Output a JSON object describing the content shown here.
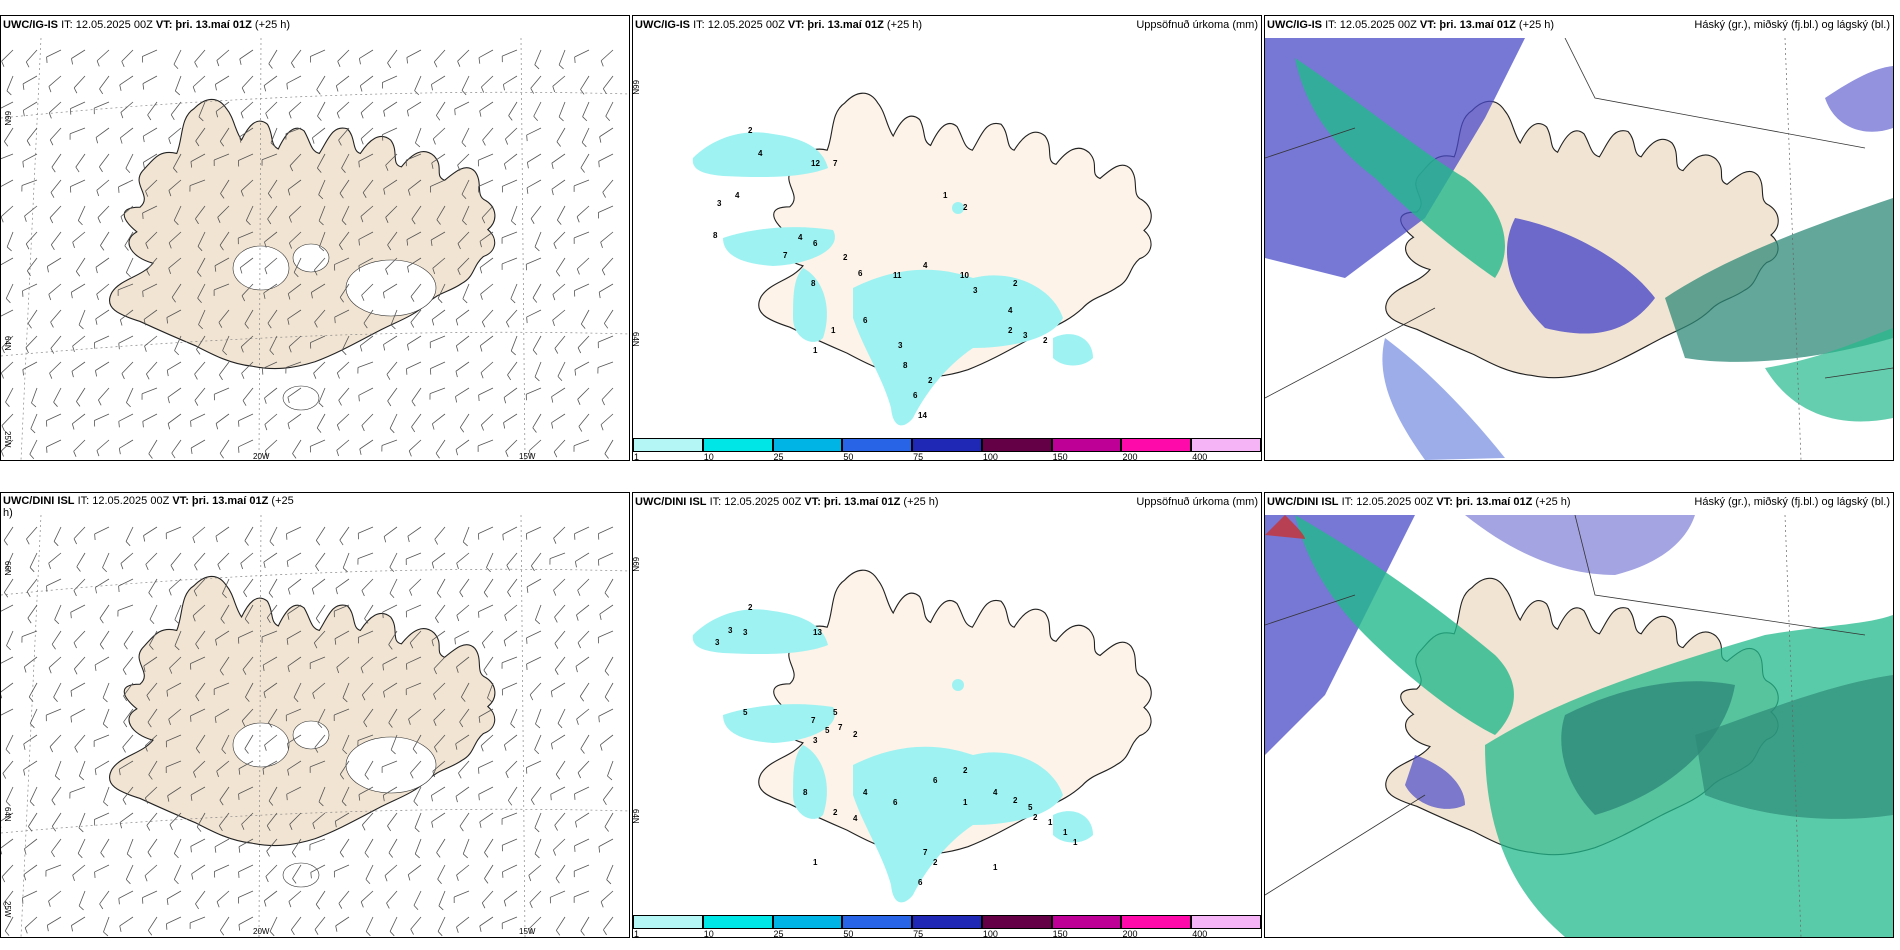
{
  "panels": [
    {
      "model": "UWC/IG-IS",
      "it": "IT: 12.05.2025 00Z",
      "vt": "VT: þri. 13.maí 01Z",
      "lead": "(+25 h)",
      "right": ""
    },
    {
      "model": "UWC/IG-IS",
      "it": "IT: 12.05.2025 00Z",
      "vt": "VT: þri. 13.maí 01Z",
      "lead": "(+25 h)",
      "right": "Uppsöfnuð úrkoma (mm)"
    },
    {
      "model": "UWC/IG-IS",
      "it": "IT: 12.05.2025 00Z",
      "vt": "VT: þri. 13.maí 01Z",
      "lead": "(+25 h)",
      "right": "Háský (gr.), miðský (fj.bl.) og lágský (bl.)"
    },
    {
      "model": "UWC/DINI ISL",
      "it": "IT: 12.05.2025 00Z",
      "vt": "VT: þri. 13.maí 01Z",
      "lead": "(+25 h)",
      "right": ""
    },
    {
      "model": "UWC/DINI ISL",
      "it": "IT: 12.05.2025 00Z",
      "vt": "VT: þri. 13.maí 01Z",
      "lead": "(+25 h)",
      "right": "Uppsöfnuð úrkoma (mm)"
    },
    {
      "model": "UWC/DINI ISL",
      "it": "IT: 12.05.2025 00Z",
      "vt": "VT: þri. 13.maí 01Z",
      "lead": "(+25 h)",
      "right": "Háský (gr.), miðský (fj.bl.) og lágský (bl.)"
    }
  ],
  "axes": {
    "lat66": "66N",
    "lat64": "64N",
    "lon25": "25W",
    "lon20": "20W",
    "lon15": "15W"
  },
  "colorbar": {
    "labels": [
      "1",
      "10",
      "25",
      "50",
      "75",
      "100",
      "150",
      "200",
      "400"
    ],
    "colors": [
      "#b4f5f5",
      "#00e6e6",
      "#00b4e6",
      "#2864e6",
      "#1e28b4",
      "#640046",
      "#be0096",
      "#ff0aaa",
      "#f5b4f5"
    ]
  },
  "precip_top": [
    "2",
    "4",
    "12",
    "7",
    "3",
    "4",
    "1",
    "2",
    "8",
    "7",
    "4",
    "6",
    "8",
    "2",
    "6",
    "11",
    "4",
    "10",
    "3",
    "2",
    "4",
    "2",
    "3",
    "2",
    "6",
    "3",
    "8",
    "2",
    "6",
    "14",
    "1",
    "1"
  ],
  "precip_bottom": [
    "2",
    "13",
    "3",
    "3",
    "3",
    "5",
    "7",
    "3",
    "5",
    "5",
    "7",
    "2",
    "8",
    "4",
    "2",
    "4",
    "6",
    "6",
    "2",
    "1",
    "4",
    "2",
    "5",
    "2",
    "1",
    "1",
    "1",
    "7",
    "2",
    "6",
    "1",
    "1"
  ],
  "colors": {
    "land": "#f2e4d2",
    "land_precip": "#fdf3e8",
    "cloud_blue": "#4a4ac8",
    "cloud_green": "#23b98c",
    "cloud_teal": "#2e8a78"
  }
}
